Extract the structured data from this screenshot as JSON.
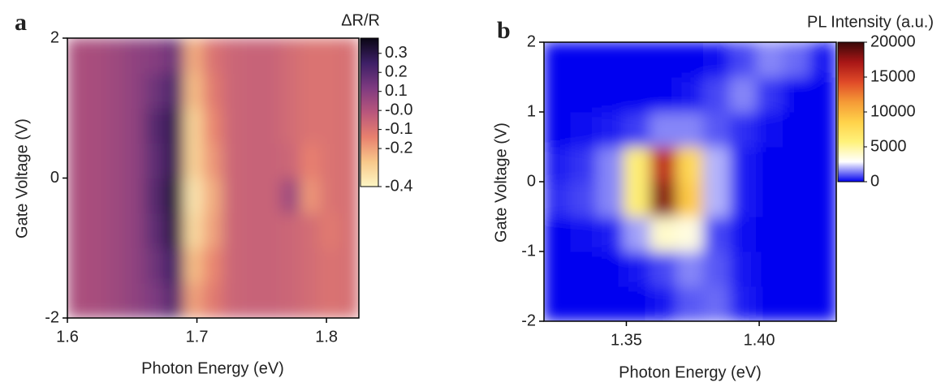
{
  "chart_data": [
    {
      "type": "heatmap",
      "panel_label": "a",
      "x_label": "Photon Energy (eV)",
      "y_label": "Gate Voltage (V)",
      "colorbar_label": "ΔR/R",
      "x": [
        1.6075,
        1.6225,
        1.6375,
        1.6525,
        1.6675,
        1.6825,
        1.6975,
        1.7125,
        1.7275,
        1.7425,
        1.7575,
        1.7725,
        1.7875,
        1.8025,
        1.8175
      ],
      "y": [
        -1.75,
        -1.25,
        -0.75,
        -0.25,
        0.25,
        0.75,
        1.25,
        1.75
      ],
      "z": [
        [
          0.02,
          0.03,
          0.05,
          0.08,
          0.12,
          0.2,
          -0.2,
          -0.12,
          -0.06,
          -0.05,
          -0.05,
          -0.06,
          -0.08,
          -0.1,
          -0.09
        ],
        [
          0.02,
          0.03,
          0.05,
          0.08,
          0.15,
          0.25,
          -0.25,
          -0.15,
          -0.06,
          -0.05,
          -0.05,
          -0.06,
          -0.08,
          -0.1,
          -0.09
        ],
        [
          0.02,
          0.03,
          0.05,
          0.08,
          0.18,
          0.3,
          -0.32,
          -0.2,
          -0.06,
          -0.05,
          -0.05,
          -0.06,
          -0.08,
          -0.12,
          -0.09
        ],
        [
          0.02,
          0.03,
          0.05,
          0.08,
          0.2,
          0.32,
          -0.35,
          -0.22,
          -0.06,
          -0.05,
          -0.05,
          0.05,
          -0.18,
          -0.1,
          -0.09
        ],
        [
          0.02,
          0.03,
          0.05,
          0.08,
          0.18,
          0.28,
          -0.3,
          -0.18,
          -0.06,
          -0.05,
          -0.05,
          -0.06,
          -0.14,
          -0.1,
          -0.09
        ],
        [
          0.02,
          0.03,
          0.05,
          0.08,
          0.2,
          0.28,
          -0.3,
          -0.15,
          -0.06,
          -0.05,
          -0.05,
          -0.08,
          -0.1,
          -0.1,
          -0.09
        ],
        [
          0.02,
          0.03,
          0.05,
          0.08,
          0.15,
          0.22,
          -0.25,
          -0.12,
          -0.06,
          -0.05,
          -0.05,
          -0.08,
          -0.1,
          -0.1,
          -0.09
        ],
        [
          0.02,
          0.03,
          0.05,
          0.08,
          0.1,
          0.15,
          -0.22,
          -0.1,
          -0.06,
          -0.05,
          -0.05,
          -0.08,
          -0.1,
          -0.1,
          -0.09
        ]
      ],
      "xlim": [
        1.6,
        1.825
      ],
      "ylim": [
        -2,
        2
      ],
      "xticks": [
        1.6,
        1.7,
        1.8
      ],
      "yticks": [
        -2,
        0,
        2
      ],
      "clim": [
        -0.4,
        0.38
      ],
      "cticks": [
        0.3,
        0.2,
        0.1,
        {
          "value": 0,
          "label": "-0.0"
        },
        -0.1,
        -0.2,
        -0.4
      ],
      "colormap": [
        "#fdf6c4",
        "#f8c88a",
        "#e8806e",
        "#b9567c",
        "#7d3a80",
        "#3d1f66",
        "#0a0614"
      ]
    },
    {
      "type": "heatmap",
      "panel_label": "b",
      "x_label": "Photon Energy (eV)",
      "y_label": "Gate Voltage (V)",
      "colorbar_label": "PL Intensity (a.u.)",
      "x": [
        1.324,
        1.334,
        1.344,
        1.354,
        1.364,
        1.374,
        1.384,
        1.394,
        1.404,
        1.414,
        1.424
      ],
      "y": [
        -1.75,
        -1.25,
        -0.75,
        -0.25,
        0.25,
        0.75,
        1.25,
        1.75
      ],
      "z": [
        [
          0,
          0,
          0,
          0,
          200,
          1000,
          1200,
          300,
          0,
          0,
          0
        ],
        [
          0,
          0,
          0,
          200,
          800,
          1500,
          1000,
          200,
          0,
          0,
          0
        ],
        [
          0,
          100,
          300,
          1800,
          4000,
          3500,
          800,
          100,
          0,
          0,
          0
        ],
        [
          500,
          800,
          1500,
          6000,
          18000,
          9000,
          2000,
          300,
          0,
          0,
          0
        ],
        [
          300,
          600,
          1500,
          6000,
          16000,
          8000,
          2000,
          300,
          0,
          0,
          0
        ],
        [
          0,
          100,
          300,
          700,
          1500,
          1500,
          1000,
          500,
          100,
          0,
          0
        ],
        [
          0,
          0,
          0,
          0,
          0,
          200,
          800,
          1500,
          600,
          0,
          0
        ],
        [
          0,
          0,
          0,
          0,
          0,
          0,
          100,
          800,
          1500,
          1200,
          200
        ]
      ],
      "xlim": [
        1.319,
        1.429
      ],
      "ylim": [
        -2,
        2
      ],
      "xticks": [
        1.35,
        {
          "value": 1.4,
          "label": "1.40"
        }
      ],
      "yticks": [
        -2,
        -1,
        0,
        1,
        2
      ],
      "clim": [
        0,
        20000
      ],
      "cticks": [
        20000,
        15000,
        10000,
        5000,
        0
      ],
      "colormap": [
        "#0000f0",
        "#ffffff",
        "#fff27a",
        "#ffd24a",
        "#f59a36",
        "#e04a28",
        "#a81616",
        "#380808"
      ]
    }
  ]
}
